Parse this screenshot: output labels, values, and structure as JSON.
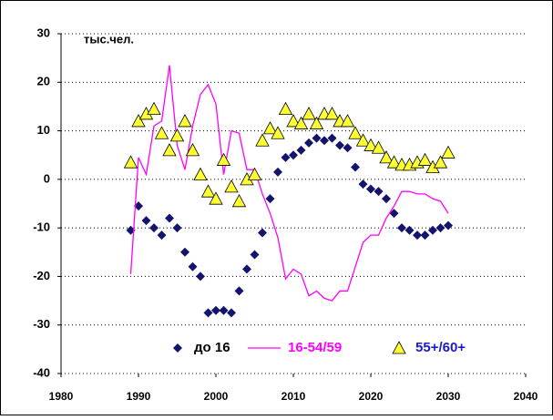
{
  "chart_data": {
    "type": "line",
    "annotation": "тыс.чел.",
    "x": [
      1989,
      1990,
      1991,
      1992,
      1993,
      1994,
      1995,
      1996,
      1997,
      1998,
      1999,
      2000,
      2001,
      2002,
      2003,
      2004,
      2005,
      2006,
      2007,
      2008,
      2009,
      2010,
      2011,
      2012,
      2013,
      2014,
      2015,
      2016,
      2017,
      2018,
      2019,
      2020,
      2021,
      2022,
      2023,
      2024,
      2025,
      2026,
      2027,
      2028,
      2029,
      2030
    ],
    "series": [
      {
        "name": "до 16",
        "color": "#14146e",
        "marker": "diamond",
        "values": [
          -10.5,
          -5.5,
          -8.5,
          -10,
          -11.5,
          -8,
          -10,
          -15,
          -18,
          -20,
          -27.5,
          -27,
          -27,
          -27.5,
          -23,
          -18.5,
          -15.5,
          -11,
          -4,
          1.5,
          4.5,
          5,
          6,
          7.5,
          8.5,
          8,
          8.5,
          7,
          6.5,
          2.5,
          -1,
          -2,
          -2.5,
          -4,
          -7,
          -10,
          -10.5,
          -11.5,
          -11.5,
          -10.5,
          -10,
          -9.5
        ]
      },
      {
        "name": "16-54/59",
        "color": "#ff00ff",
        "marker": "none",
        "values": [
          -19.5,
          4.5,
          1,
          11,
          12,
          23.5,
          7,
          2,
          11,
          17.5,
          19.5,
          15.5,
          1,
          10,
          9.5,
          2,
          2,
          -3,
          -7,
          -12,
          -20.5,
          -18.5,
          -19.5,
          -24,
          -23,
          -24.5,
          -25,
          -23,
          -23,
          -18,
          -13,
          -11.5,
          -11.5,
          -8,
          -5.5,
          -2.5,
          -2.5,
          -3,
          -3,
          -4,
          -4.5,
          -7
        ]
      },
      {
        "name": "55+/60+",
        "color": "#ffff33",
        "marker": "triangle",
        "values": [
          3.5,
          12,
          13.5,
          14.5,
          9.5,
          6,
          9,
          12,
          6,
          1,
          -2.5,
          -4,
          4,
          -1.5,
          -4.5,
          0,
          1,
          8,
          10.5,
          9.5,
          14.5,
          12,
          11.5,
          13.5,
          11.5,
          13.5,
          13.5,
          12,
          12,
          9.5,
          8,
          7,
          6.5,
          4.5,
          3.5,
          3,
          3,
          3.5,
          4,
          2.5,
          3.5,
          5.5
        ]
      }
    ],
    "xlim": [
      1980,
      2040
    ],
    "xticks": [
      1980,
      1990,
      2000,
      2010,
      2020,
      2030,
      2040
    ],
    "ylim": [
      -40,
      30
    ],
    "yticks": [
      -40,
      -30,
      -20,
      -10,
      0,
      10,
      20,
      30
    ],
    "grid": true,
    "legend": "bottom"
  }
}
